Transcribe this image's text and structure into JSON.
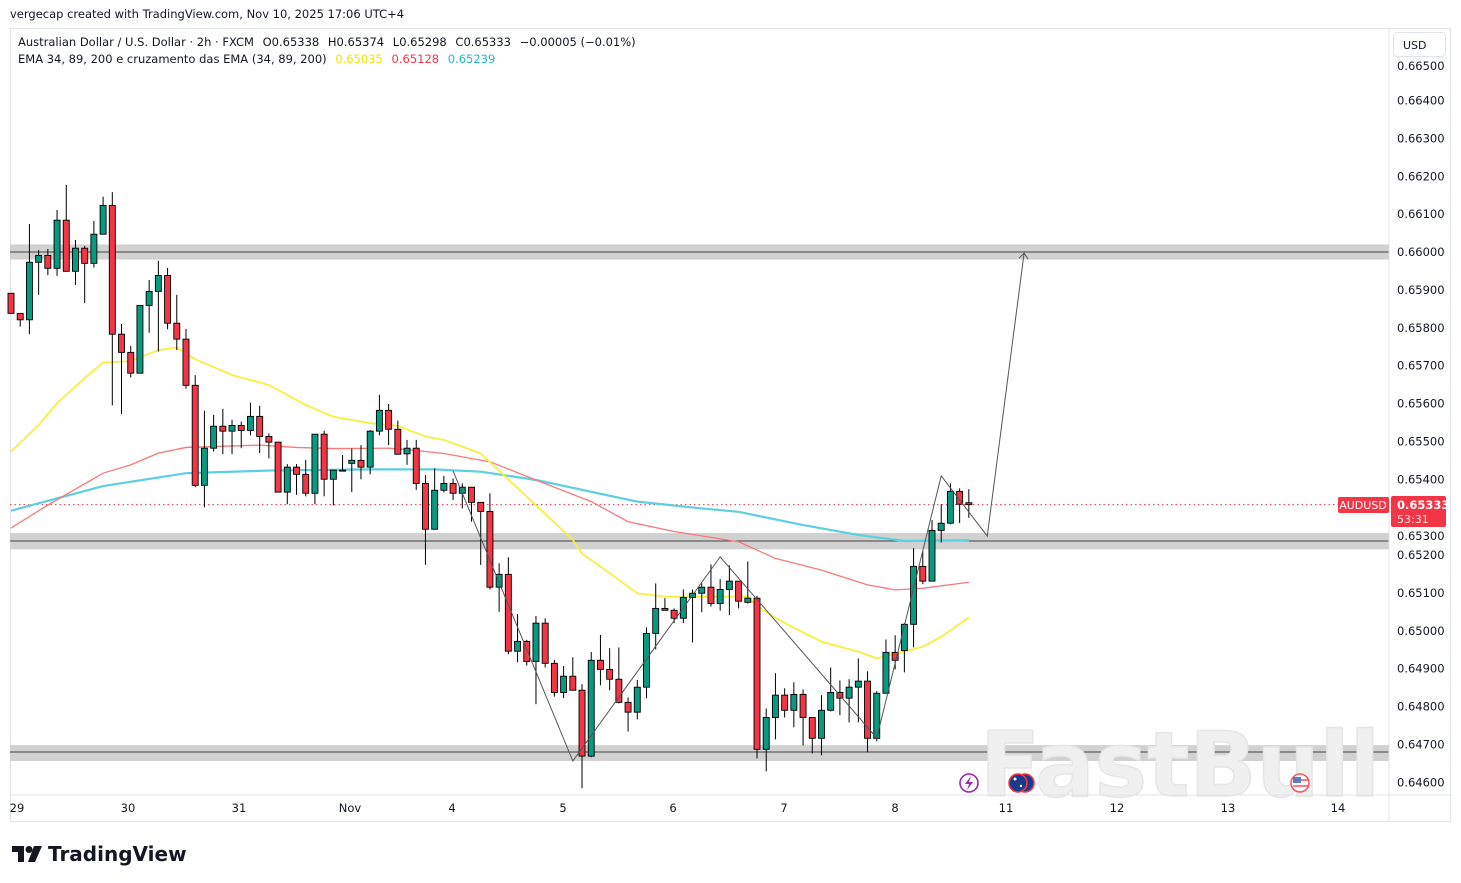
{
  "credit": "vergecap created with TradingView.com, Nov 10, 2025 17:06 UTC+4",
  "legend": {
    "symbol_line": "Australian Dollar / U.S. Dollar · 2h · FXCM",
    "open_label": "O",
    "open": "0.65338",
    "high_label": "H",
    "high": "0.65374",
    "low_label": "L",
    "low": "0.65298",
    "close_label": "C",
    "close": "0.65333",
    "change": "−0.00005 (−0.01%)",
    "indicator": "EMA 34, 89, 200 e cruzamento das EMA (34, 89, 200)",
    "ema34": "0.65035",
    "ema89": "0.65128",
    "ema200": "0.65239"
  },
  "currency_button": "USD",
  "price_badge": {
    "symbol": "AUDUSD",
    "price": "0.65333",
    "countdown": "53:31"
  },
  "logo_text": "TradingView",
  "watermark": "FastBull",
  "colors": {
    "up": "#089981",
    "down": "#f23645",
    "ema34": "#f7f03f",
    "ema89": "#f77a7a",
    "ema200": "#5ccfe0",
    "zone": "#d1d1d1",
    "price_line": "#f23645"
  },
  "icons": [
    "lightning-event-icon",
    "australia-flag-event-icon",
    "us-flag-event-icon"
  ],
  "chart_data": {
    "type": "candlestick",
    "symbol": "AUDUSD",
    "timeframe": "2h",
    "ylim": [
      0.6457,
      0.6652
    ],
    "price_ticks": [
      "0.66500",
      "0.66400",
      "0.66300",
      "0.66200",
      "0.66100",
      "0.66000",
      "0.65900",
      "0.65800",
      "0.65700",
      "0.65600",
      "0.65500",
      "0.65400",
      "0.65300",
      "0.65200",
      "0.65100",
      "0.65000",
      "0.64900",
      "0.64800",
      "0.64700",
      "0.64600"
    ],
    "time_ticks": [
      "29",
      "30",
      "31",
      "Nov",
      "4",
      "5",
      "6",
      "7",
      "8",
      "11",
      "12",
      "13",
      "14"
    ],
    "ohlc": [
      [
        0.65891,
        0.65891,
        0.65838,
        0.65838
      ],
      [
        0.65838,
        0.65838,
        0.65803,
        0.65821
      ],
      [
        0.65821,
        0.66074,
        0.65783,
        0.65973
      ],
      [
        0.65973,
        0.66005,
        0.65887,
        0.65991
      ],
      [
        0.65991,
        0.66008,
        0.65939,
        0.65957
      ],
      [
        0.65957,
        0.66111,
        0.65937,
        0.66084
      ],
      [
        0.66084,
        0.66177,
        0.65949,
        0.65949
      ],
      [
        0.65949,
        0.66032,
        0.65913,
        0.6601
      ],
      [
        0.6601,
        0.66016,
        0.65865,
        0.6597
      ],
      [
        0.6597,
        0.66082,
        0.65959,
        0.66047
      ],
      [
        0.66047,
        0.66146,
        0.66047,
        0.66123
      ],
      [
        0.66123,
        0.66158,
        0.65595,
        0.65783
      ],
      [
        0.65783,
        0.6581,
        0.65572,
        0.65735
      ],
      [
        0.65735,
        0.65752,
        0.65669,
        0.6568
      ],
      [
        0.6568,
        0.65859,
        0.6568,
        0.65859
      ],
      [
        0.65859,
        0.65926,
        0.65787,
        0.65896
      ],
      [
        0.65896,
        0.65977,
        0.65737,
        0.65938
      ],
      [
        0.65938,
        0.65958,
        0.65796,
        0.65812
      ],
      [
        0.65812,
        0.65887,
        0.65741,
        0.6577
      ],
      [
        0.6577,
        0.65797,
        0.65639,
        0.65648
      ],
      [
        0.65648,
        0.65675,
        0.65379,
        0.65384
      ],
      [
        0.65384,
        0.65581,
        0.65326,
        0.65482
      ],
      [
        0.65482,
        0.6557,
        0.65473,
        0.6554
      ],
      [
        0.6554,
        0.65586,
        0.65466,
        0.65527
      ],
      [
        0.65527,
        0.65557,
        0.65466,
        0.65542
      ],
      [
        0.65542,
        0.65552,
        0.65482,
        0.65529
      ],
      [
        0.65529,
        0.65602,
        0.65516,
        0.65566
      ],
      [
        0.65566,
        0.65594,
        0.65469,
        0.65513
      ],
      [
        0.65513,
        0.65521,
        0.65455,
        0.65498
      ],
      [
        0.65498,
        0.65498,
        0.65366,
        0.65366
      ],
      [
        0.65366,
        0.6544,
        0.65334,
        0.65432
      ],
      [
        0.65432,
        0.6544,
        0.65359,
        0.65413
      ],
      [
        0.65413,
        0.65451,
        0.65355,
        0.65363
      ],
      [
        0.65363,
        0.65519,
        0.65334,
        0.65519
      ],
      [
        0.65519,
        0.65528,
        0.65355,
        0.654
      ],
      [
        0.654,
        0.65424,
        0.65331,
        0.65424
      ],
      [
        0.65423,
        0.65464,
        0.65421,
        0.65424
      ],
      [
        0.65442,
        0.65481,
        0.65366,
        0.6545
      ],
      [
        0.6545,
        0.6549,
        0.654,
        0.65432
      ],
      [
        0.65432,
        0.6553,
        0.65413,
        0.65527
      ],
      [
        0.65527,
        0.65623,
        0.65516,
        0.65582
      ],
      [
        0.65582,
        0.65599,
        0.6549,
        0.65532
      ],
      [
        0.65532,
        0.65555,
        0.65466,
        0.65466
      ],
      [
        0.65467,
        0.65504,
        0.65438,
        0.65482
      ],
      [
        0.65482,
        0.65504,
        0.65372,
        0.65389
      ],
      [
        0.65389,
        0.65411,
        0.65174,
        0.65268
      ],
      [
        0.65268,
        0.65429,
        0.65268,
        0.65371
      ],
      [
        0.65371,
        0.65409,
        0.65365,
        0.65389
      ],
      [
        0.65389,
        0.65402,
        0.65345,
        0.65363
      ],
      [
        0.65363,
        0.65389,
        0.65323,
        0.65379
      ],
      [
        0.65379,
        0.65379,
        0.65288,
        0.65339
      ],
      [
        0.65339,
        0.65339,
        0.65174,
        0.65315
      ],
      [
        0.65315,
        0.65363,
        0.65109,
        0.65115
      ],
      [
        0.65115,
        0.65178,
        0.6505,
        0.65149
      ],
      [
        0.65149,
        0.65194,
        0.64938,
        0.64946
      ],
      [
        0.64946,
        0.65044,
        0.64917,
        0.64972
      ],
      [
        0.64972,
        0.64976,
        0.64908,
        0.64919
      ],
      [
        0.64919,
        0.65039,
        0.64806,
        0.6502
      ],
      [
        0.6502,
        0.65033,
        0.64903,
        0.64914
      ],
      [
        0.64914,
        0.64923,
        0.64826,
        0.64837
      ],
      [
        0.64837,
        0.64907,
        0.64822,
        0.6488
      ],
      [
        0.6488,
        0.6493,
        0.64843,
        0.64843
      ],
      [
        0.64843,
        0.64859,
        0.64584,
        0.64669
      ],
      [
        0.64669,
        0.64944,
        0.64666,
        0.64922
      ],
      [
        0.64922,
        0.64989,
        0.64856,
        0.64898
      ],
      [
        0.64898,
        0.64954,
        0.64843,
        0.64872
      ],
      [
        0.64872,
        0.64956,
        0.64808,
        0.64811
      ],
      [
        0.64811,
        0.64824,
        0.64734,
        0.64785
      ],
      [
        0.64785,
        0.6487,
        0.64766,
        0.64851
      ],
      [
        0.64851,
        0.65009,
        0.64822,
        0.64993
      ],
      [
        0.64993,
        0.65125,
        0.64951,
        0.65059
      ],
      [
        0.65059,
        0.65086,
        0.65054,
        0.65054
      ],
      [
        0.65054,
        0.65059,
        0.6502,
        0.65033
      ],
      [
        0.65033,
        0.65109,
        0.6502,
        0.65088
      ],
      [
        0.65088,
        0.65109,
        0.64969,
        0.65099
      ],
      [
        0.65099,
        0.65125,
        0.65049,
        0.65115
      ],
      [
        0.65115,
        0.65175,
        0.65064,
        0.65072
      ],
      [
        0.65072,
        0.65136,
        0.65053,
        0.65109
      ],
      [
        0.65109,
        0.65173,
        0.65041,
        0.65131
      ],
      [
        0.65131,
        0.65131,
        0.65059,
        0.65078
      ],
      [
        0.65075,
        0.65183,
        0.65072,
        0.65086
      ],
      [
        0.65086,
        0.65092,
        0.64663,
        0.64687
      ],
      [
        0.64687,
        0.64795,
        0.64629,
        0.64771
      ],
      [
        0.64771,
        0.64888,
        0.64713,
        0.6483
      ],
      [
        0.6483,
        0.64848,
        0.64771,
        0.6479
      ],
      [
        0.6479,
        0.64864,
        0.64745,
        0.64832
      ],
      [
        0.64832,
        0.64845,
        0.64697,
        0.64771
      ],
      [
        0.64771,
        0.64771,
        0.64676,
        0.64716
      ],
      [
        0.64716,
        0.6483,
        0.64671,
        0.6479
      ],
      [
        0.6479,
        0.64903,
        0.64787,
        0.64837
      ],
      [
        0.64837,
        0.64869,
        0.64777,
        0.64822
      ],
      [
        0.64822,
        0.64872,
        0.64758,
        0.64851
      ],
      [
        0.64851,
        0.64927,
        0.64758,
        0.64867
      ],
      [
        0.64867,
        0.64893,
        0.64679,
        0.64716
      ],
      [
        0.64716,
        0.6484,
        0.64708,
        0.64835
      ],
      [
        0.64835,
        0.64977,
        0.64835,
        0.64943
      ],
      [
        0.64943,
        0.64988,
        0.64898,
        0.64922
      ],
      [
        0.64948,
        0.6502,
        0.6489,
        0.65017
      ],
      [
        0.65017,
        0.65218,
        0.64956,
        0.6517
      ],
      [
        0.6517,
        0.6521,
        0.65123,
        0.65131
      ],
      [
        0.65131,
        0.65292,
        0.65131,
        0.65265
      ],
      [
        0.65265,
        0.65334,
        0.65233,
        0.65284
      ],
      [
        0.65284,
        0.65389,
        0.65281,
        0.65368
      ],
      [
        0.65368,
        0.65376,
        0.65284,
        0.65334
      ],
      [
        0.65338,
        0.65374,
        0.65298,
        0.65333
      ]
    ],
    "ema34": [
      [
        1,
        0.65473
      ],
      [
        4,
        0.65543
      ],
      [
        6,
        0.65601
      ],
      [
        9,
        0.65667
      ],
      [
        11,
        0.65708
      ],
      [
        14,
        0.65712
      ],
      [
        17,
        0.65741
      ],
      [
        19,
        0.65748
      ],
      [
        21,
        0.65717
      ],
      [
        25,
        0.65675
      ],
      [
        29,
        0.65649
      ],
      [
        33,
        0.65596
      ],
      [
        36,
        0.65565
      ],
      [
        40,
        0.65548
      ],
      [
        43,
        0.65541
      ],
      [
        46,
        0.65513
      ],
      [
        48,
        0.65504
      ],
      [
        52,
        0.65468
      ],
      [
        57,
        0.65354
      ],
      [
        62,
        0.6524
      ],
      [
        63,
        0.65204
      ],
      [
        66,
        0.65152
      ],
      [
        69,
        0.65099
      ],
      [
        72,
        0.6509
      ],
      [
        76,
        0.6509
      ],
      [
        81,
        0.6509
      ],
      [
        82,
        0.65064
      ],
      [
        85,
        0.6502
      ],
      [
        89,
        0.64971
      ],
      [
        93,
        0.64945
      ],
      [
        95,
        0.64927
      ],
      [
        98,
        0.64945
      ],
      [
        100,
        0.64958
      ],
      [
        102,
        0.64984
      ],
      [
        105,
        0.65035
      ]
    ],
    "ema89": [
      [
        1,
        0.65271
      ],
      [
        5,
        0.65332
      ],
      [
        11,
        0.65416
      ],
      [
        14,
        0.65438
      ],
      [
        17,
        0.65469
      ],
      [
        20,
        0.65484
      ],
      [
        25,
        0.65488
      ],
      [
        28,
        0.6549
      ],
      [
        32,
        0.65484
      ],
      [
        36,
        0.65481
      ],
      [
        42,
        0.65482
      ],
      [
        45,
        0.65476
      ],
      [
        48,
        0.65468
      ],
      [
        53,
        0.65446
      ],
      [
        58,
        0.65398
      ],
      [
        64,
        0.65341
      ],
      [
        68,
        0.65288
      ],
      [
        73,
        0.65262
      ],
      [
        80,
        0.65235
      ],
      [
        84,
        0.65191
      ],
      [
        89,
        0.6516
      ],
      [
        94,
        0.65121
      ],
      [
        97,
        0.65108
      ],
      [
        100,
        0.65112
      ],
      [
        105,
        0.65128
      ]
    ],
    "ema200": [
      [
        1,
        0.65317
      ],
      [
        11,
        0.65382
      ],
      [
        20,
        0.65416
      ],
      [
        29,
        0.65423
      ],
      [
        40,
        0.65426
      ],
      [
        47,
        0.65426
      ],
      [
        52,
        0.6542
      ],
      [
        58,
        0.65398
      ],
      [
        63,
        0.65372
      ],
      [
        69,
        0.65341
      ],
      [
        76,
        0.65323
      ],
      [
        80,
        0.65314
      ],
      [
        87,
        0.65279
      ],
      [
        93,
        0.65253
      ],
      [
        98,
        0.65237
      ],
      [
        105,
        0.65239
      ]
    ],
    "zones": [
      {
        "line": 0.66,
        "from": 0.6598,
        "to": 0.6602
      },
      {
        "line": 0.65237,
        "from": 0.65215,
        "to": 0.65258
      },
      {
        "line": 0.6468,
        "from": 0.64656,
        "to": 0.64698
      }
    ],
    "projection_path": [
      [
        49,
        0.65422
      ],
      [
        62,
        0.64656
      ],
      [
        78,
        0.65195
      ],
      [
        95,
        0.64717
      ],
      [
        102,
        0.65409
      ],
      [
        107,
        0.6525
      ],
      [
        111,
        0.65997
      ]
    ],
    "last_price": 0.65333
  }
}
